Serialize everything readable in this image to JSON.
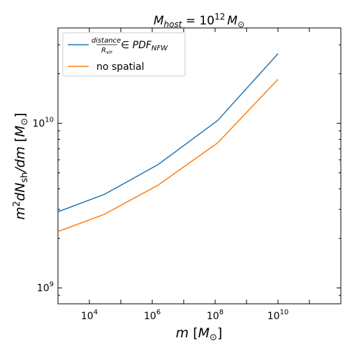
{
  "chart_data": {
    "type": "line",
    "title": "$M_{host} = 10^{12} M_\\odot$",
    "title_parts": {
      "m": "M",
      "host": "host",
      "eq": " = 10",
      "exp": "12",
      "m2": "M",
      "odot": "⊙"
    },
    "xlabel": "$m$ [$M_\\odot$]",
    "xlabel_parts": {
      "m": "m",
      "open": " [",
      "M": "M",
      "odot": "⊙",
      "close": "]"
    },
    "ylabel": "$m^2 dN_{\\rm sh}/dm$ [$M_\\odot$]",
    "ylabel_parts": {
      "m": "m",
      "sq": "2",
      "dN": "dN",
      "sh": "sh",
      "slash": "/dm",
      "open": " [",
      "M": "M",
      "odot": "⊙",
      "close": "]"
    },
    "x_scale": "log",
    "y_scale": "log",
    "xlim": [
      1000,
      1000000000000
    ],
    "ylim": [
      800000000,
      38000000000
    ],
    "x_ticks": [
      {
        "value": 10000,
        "base": "10",
        "exp": "4"
      },
      {
        "value": 1000000,
        "base": "10",
        "exp": "6"
      },
      {
        "value": 100000000,
        "base": "10",
        "exp": "8"
      },
      {
        "value": 10000000000,
        "base": "10",
        "exp": "10"
      }
    ],
    "y_ticks": [
      {
        "value": 1000000000,
        "base": "10",
        "exp": "9"
      },
      {
        "value": 10000000000,
        "base": "10",
        "exp": "10"
      }
    ],
    "grid": false,
    "legend_position": "top-left",
    "series": [
      {
        "name": "distance / R_vir ∈ PDF_NFW",
        "legend_parts": {
          "num": "distance",
          "den": "R",
          "den_sub": "vir",
          "in": "∈ PDF",
          "sub": "NFW"
        },
        "color": "#1f77b4",
        "x": [
          1000,
          30000,
          1500000,
          120000000,
          10000000000
        ],
        "y": [
          2900000000,
          3700000000,
          5600000000,
          10400000000,
          26500000000
        ]
      },
      {
        "name": "no spatial",
        "legend_parts": {
          "text": "no spatial"
        },
        "color": "#ff7f0e",
        "x": [
          1000,
          30000,
          1500000,
          120000000,
          10000000000
        ],
        "y": [
          2200000000,
          2800000000,
          4200000000,
          7600000000,
          18500000000
        ]
      }
    ]
  }
}
